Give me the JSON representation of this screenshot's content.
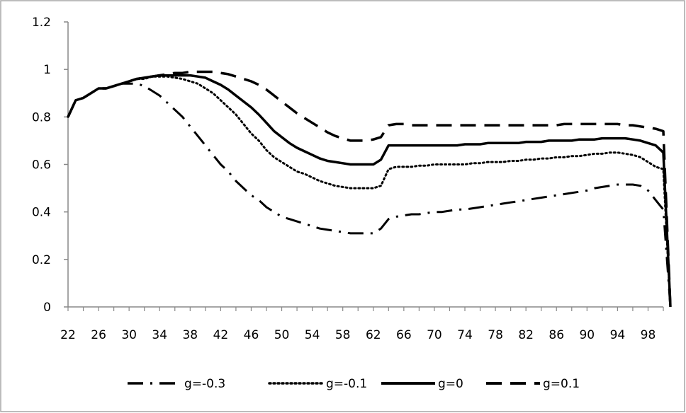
{
  "chart_data": {
    "type": "line",
    "title": "",
    "xlabel": "",
    "ylabel": "",
    "x": [
      22,
      23,
      24,
      25,
      26,
      27,
      28,
      29,
      30,
      31,
      32,
      33,
      34,
      35,
      36,
      37,
      38,
      39,
      40,
      41,
      42,
      43,
      44,
      45,
      46,
      47,
      48,
      49,
      50,
      51,
      52,
      53,
      54,
      55,
      56,
      57,
      58,
      59,
      60,
      61,
      62,
      63,
      64,
      65,
      66,
      67,
      68,
      69,
      70,
      71,
      72,
      73,
      74,
      75,
      76,
      77,
      78,
      79,
      80,
      81,
      82,
      83,
      84,
      85,
      86,
      87,
      88,
      89,
      90,
      91,
      92,
      93,
      94,
      95,
      96,
      97,
      98,
      99,
      100
    ],
    "x_ticks": [
      "22",
      "26",
      "30",
      "34",
      "38",
      "42",
      "46",
      "50",
      "54",
      "58",
      "62",
      "66",
      "70",
      "74",
      "78",
      "82",
      "86",
      "90",
      "94",
      "98"
    ],
    "y_ticks": [
      "0",
      "0.2",
      "0.4",
      "0.6",
      "0.8",
      "1",
      "1.2"
    ],
    "ylim": [
      0,
      1.2
    ],
    "grid": false,
    "legend_position": "bottom",
    "series": [
      {
        "name": "g=-0.3",
        "dash": "dashdot",
        "values": [
          0.8,
          0.87,
          0.88,
          0.9,
          0.92,
          0.92,
          0.93,
          0.94,
          0.94,
          0.94,
          0.93,
          0.91,
          0.89,
          0.86,
          0.83,
          0.8,
          0.76,
          0.72,
          0.68,
          0.64,
          0.6,
          0.57,
          0.53,
          0.5,
          0.47,
          0.45,
          0.42,
          0.4,
          0.38,
          0.37,
          0.36,
          0.35,
          0.34,
          0.33,
          0.325,
          0.32,
          0.315,
          0.31,
          0.31,
          0.31,
          0.31,
          0.33,
          0.37,
          0.38,
          0.385,
          0.39,
          0.39,
          0.395,
          0.4,
          0.4,
          0.405,
          0.41,
          0.41,
          0.415,
          0.42,
          0.425,
          0.43,
          0.435,
          0.44,
          0.445,
          0.45,
          0.455,
          0.46,
          0.465,
          0.47,
          0.475,
          0.48,
          0.485,
          0.49,
          0.5,
          0.505,
          0.51,
          0.515,
          0.515,
          0.515,
          0.51,
          0.49,
          0.45,
          0.41
        ]
      },
      {
        "name": "g=-0.1",
        "dash": "dotted",
        "values": [
          0.8,
          0.87,
          0.88,
          0.9,
          0.92,
          0.92,
          0.93,
          0.94,
          0.95,
          0.96,
          0.96,
          0.97,
          0.97,
          0.97,
          0.965,
          0.96,
          0.95,
          0.94,
          0.92,
          0.9,
          0.87,
          0.84,
          0.81,
          0.77,
          0.73,
          0.7,
          0.66,
          0.63,
          0.61,
          0.59,
          0.57,
          0.56,
          0.545,
          0.53,
          0.52,
          0.51,
          0.505,
          0.5,
          0.5,
          0.5,
          0.5,
          0.51,
          0.58,
          0.59,
          0.59,
          0.59,
          0.595,
          0.595,
          0.6,
          0.6,
          0.6,
          0.6,
          0.6,
          0.605,
          0.605,
          0.61,
          0.61,
          0.61,
          0.615,
          0.615,
          0.62,
          0.62,
          0.625,
          0.625,
          0.63,
          0.63,
          0.635,
          0.635,
          0.64,
          0.645,
          0.645,
          0.65,
          0.65,
          0.645,
          0.64,
          0.63,
          0.61,
          0.59,
          0.58
        ]
      },
      {
        "name": "g=0",
        "dash": "solid",
        "values": [
          0.8,
          0.87,
          0.88,
          0.9,
          0.92,
          0.92,
          0.93,
          0.94,
          0.95,
          0.96,
          0.965,
          0.97,
          0.975,
          0.975,
          0.975,
          0.975,
          0.975,
          0.97,
          0.965,
          0.95,
          0.935,
          0.915,
          0.89,
          0.865,
          0.84,
          0.81,
          0.775,
          0.74,
          0.715,
          0.69,
          0.67,
          0.655,
          0.64,
          0.625,
          0.615,
          0.61,
          0.605,
          0.6,
          0.6,
          0.6,
          0.6,
          0.62,
          0.68,
          0.68,
          0.68,
          0.68,
          0.68,
          0.68,
          0.68,
          0.68,
          0.68,
          0.68,
          0.685,
          0.685,
          0.685,
          0.69,
          0.69,
          0.69,
          0.69,
          0.69,
          0.695,
          0.695,
          0.695,
          0.7,
          0.7,
          0.7,
          0.7,
          0.705,
          0.705,
          0.705,
          0.71,
          0.71,
          0.71,
          0.71,
          0.705,
          0.7,
          0.69,
          0.68,
          0.65
        ]
      },
      {
        "name": "g=0.1",
        "dash": "dashed",
        "values": [
          0.8,
          0.87,
          0.88,
          0.9,
          0.92,
          0.92,
          0.93,
          0.94,
          0.95,
          0.96,
          0.965,
          0.97,
          0.975,
          0.98,
          0.985,
          0.985,
          0.99,
          0.99,
          0.99,
          0.99,
          0.985,
          0.98,
          0.97,
          0.96,
          0.95,
          0.935,
          0.915,
          0.89,
          0.865,
          0.84,
          0.815,
          0.795,
          0.775,
          0.755,
          0.735,
          0.72,
          0.71,
          0.7,
          0.7,
          0.7,
          0.705,
          0.715,
          0.765,
          0.77,
          0.77,
          0.765,
          0.765,
          0.765,
          0.765,
          0.765,
          0.765,
          0.765,
          0.765,
          0.765,
          0.765,
          0.765,
          0.765,
          0.765,
          0.765,
          0.765,
          0.765,
          0.765,
          0.765,
          0.765,
          0.765,
          0.77,
          0.77,
          0.77,
          0.77,
          0.77,
          0.77,
          0.77,
          0.77,
          0.765,
          0.765,
          0.76,
          0.755,
          0.75,
          0.74
        ]
      }
    ]
  }
}
